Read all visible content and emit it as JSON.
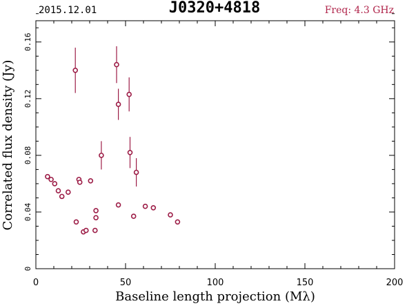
{
  "header": {
    "date": "2015.12.01",
    "source": "J0320+4818",
    "freq": "Freq: 4.3 GHz",
    "freq_color": "#b0244a"
  },
  "colors": {
    "marker": "#9c1c46",
    "axis": "#000000"
  },
  "chart_data": {
    "type": "scatter",
    "xlabel": "Baseline length projection (Mλ)",
    "ylabel": "Correlated flux density (Jy)",
    "xlim": [
      0,
      200
    ],
    "ylim": [
      0,
      0.175
    ],
    "x_ticks": [
      0,
      50,
      100,
      150,
      200
    ],
    "x_tick_labels": [
      "0",
      "50",
      "100",
      "150",
      "200"
    ],
    "y_ticks": [
      0,
      0.04,
      0.08,
      0.12,
      0.16
    ],
    "y_tick_labels": [
      "0",
      "0.04",
      "0.08",
      "0.12",
      "0.16"
    ],
    "x_minor_step": 10,
    "y_minor_step": 0.01,
    "grid": false,
    "series": [
      {
        "points": [
          {
            "x": 6.5,
            "y": 0.065,
            "err": 0
          },
          {
            "x": 8.5,
            "y": 0.063,
            "err": 0
          },
          {
            "x": 10.5,
            "y": 0.06,
            "err": 0
          },
          {
            "x": 12.5,
            "y": 0.055,
            "err": 0
          },
          {
            "x": 14.5,
            "y": 0.051,
            "err": 0
          },
          {
            "x": 18.0,
            "y": 0.054,
            "err": 0
          },
          {
            "x": 22.0,
            "y": 0.14,
            "err": 0.016
          },
          {
            "x": 22.5,
            "y": 0.033,
            "err": 0
          },
          {
            "x": 24.0,
            "y": 0.063,
            "err": 0
          },
          {
            "x": 24.5,
            "y": 0.061,
            "err": 0
          },
          {
            "x": 26.5,
            "y": 0.026,
            "err": 0
          },
          {
            "x": 28.0,
            "y": 0.027,
            "err": 0
          },
          {
            "x": 30.5,
            "y": 0.062,
            "err": 0
          },
          {
            "x": 33.0,
            "y": 0.027,
            "err": 0
          },
          {
            "x": 33.5,
            "y": 0.041,
            "err": 0
          },
          {
            "x": 33.5,
            "y": 0.036,
            "err": 0
          },
          {
            "x": 36.5,
            "y": 0.08,
            "err": 0.01
          },
          {
            "x": 45.0,
            "y": 0.144,
            "err": 0.013
          },
          {
            "x": 46.0,
            "y": 0.116,
            "err": 0.011
          },
          {
            "x": 46.0,
            "y": 0.045,
            "err": 0
          },
          {
            "x": 52.0,
            "y": 0.123,
            "err": 0.012
          },
          {
            "x": 52.5,
            "y": 0.082,
            "err": 0.011
          },
          {
            "x": 54.5,
            "y": 0.037,
            "err": 0
          },
          {
            "x": 56.0,
            "y": 0.068,
            "err": 0.01
          },
          {
            "x": 61.0,
            "y": 0.044,
            "err": 0
          },
          {
            "x": 65.5,
            "y": 0.043,
            "err": 0
          },
          {
            "x": 75.0,
            "y": 0.038,
            "err": 0
          },
          {
            "x": 79.0,
            "y": 0.033,
            "err": 0
          }
        ]
      }
    ]
  }
}
